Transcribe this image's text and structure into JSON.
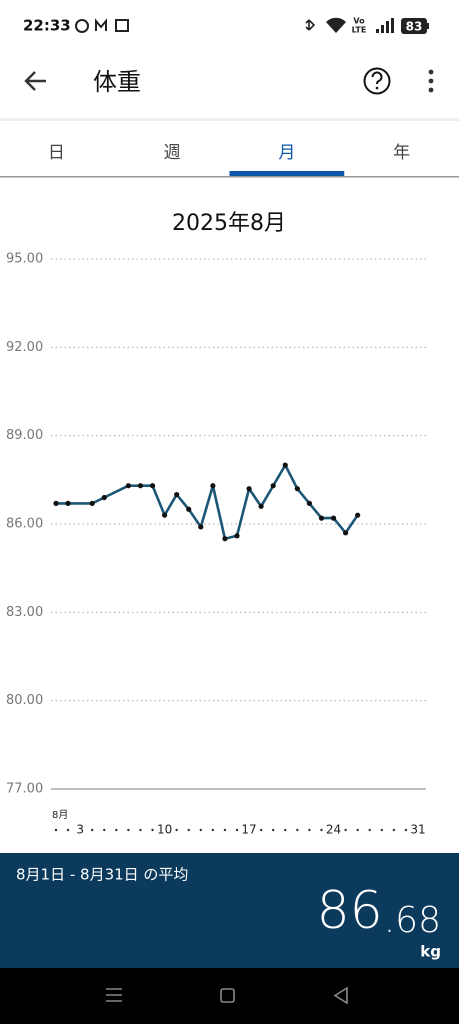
{
  "status_bar": {
    "time": "22:33",
    "network": [
      "Vo",
      "LTE"
    ],
    "battery": "83"
  },
  "header": {
    "title": "体重"
  },
  "tabs": [
    "日",
    "週",
    "月",
    "年"
  ],
  "selected_tab": 2,
  "chart_data": {
    "type": "line",
    "title": "2025年8月",
    "x_unit_label": "8月",
    "x": [
      1,
      2,
      4,
      5,
      7,
      8,
      9,
      10,
      11,
      12,
      13,
      14,
      15,
      16,
      17,
      18,
      19,
      20,
      21,
      22,
      23,
      24,
      25,
      26
    ],
    "series": [
      {
        "color": "#1b5676",
        "values": [
          86.7,
          86.7,
          86.7,
          86.9,
          87.3,
          87.3,
          87.3,
          86.3,
          87.0,
          86.5,
          85.9,
          87.3,
          85.5,
          85.6,
          87.2,
          86.6,
          87.3,
          88.0,
          87.2,
          86.7,
          86.2,
          86.2,
          85.7,
          86.3
        ]
      }
    ],
    "xlim": [
      1,
      31
    ],
    "xticks": [
      3,
      10,
      17,
      24,
      31
    ],
    "ylim": [
      77,
      95
    ],
    "yticks": [
      {
        "value": 77,
        "label": "77.00"
      },
      {
        "value": 80,
        "label": "80.00"
      },
      {
        "value": 83,
        "label": "83.00"
      },
      {
        "value": 86,
        "label": "86.00"
      },
      {
        "value": 89,
        "label": "89.00"
      },
      {
        "value": 92,
        "label": "92.00"
      },
      {
        "value": 95,
        "label": "95.00"
      }
    ],
    "grid": true
  },
  "summary": {
    "period": "8月1日 - 8月31日 の平均",
    "average": {
      "integer": "86",
      "fraction": ".68"
    },
    "unit": "kg"
  }
}
